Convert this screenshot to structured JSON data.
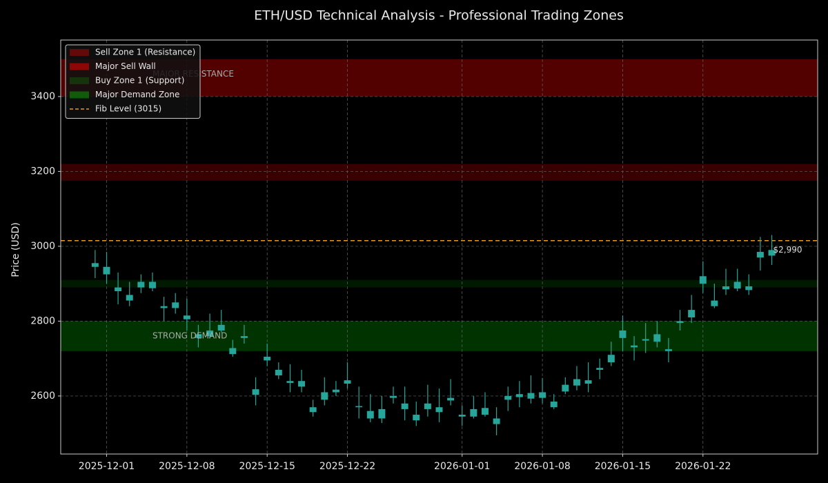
{
  "chart_data": {
    "type": "candlestick",
    "title": "ETH/USD Technical Analysis - Professional Trading Zones",
    "y_label": "Price (USD)",
    "x": [
      "2025-11-30",
      "2025-12-01",
      "2025-12-02",
      "2025-12-03",
      "2025-12-04",
      "2025-12-05",
      "2025-12-06",
      "2025-12-07",
      "2025-12-08",
      "2025-12-09",
      "2025-12-10",
      "2025-12-11",
      "2025-12-12",
      "2025-12-13",
      "2025-12-14",
      "2025-12-15",
      "2025-12-16",
      "2025-12-17",
      "2025-12-18",
      "2025-12-19",
      "2025-12-20",
      "2025-12-21",
      "2025-12-22",
      "2025-12-23",
      "2025-12-24",
      "2025-12-25",
      "2025-12-26",
      "2025-12-27",
      "2025-12-28",
      "2025-12-29",
      "2025-12-30",
      "2025-12-31",
      "2026-01-01",
      "2026-01-02",
      "2026-01-03",
      "2026-01-04",
      "2026-01-05",
      "2026-01-06",
      "2026-01-07",
      "2026-01-08",
      "2026-01-09",
      "2026-01-10",
      "2026-01-11",
      "2026-01-12",
      "2026-01-13",
      "2026-01-14",
      "2026-01-15",
      "2026-01-16",
      "2026-01-17",
      "2026-01-18",
      "2026-01-19",
      "2026-01-20",
      "2026-01-21",
      "2026-01-22",
      "2026-01-23",
      "2026-01-24",
      "2026-01-25",
      "2026-01-26",
      "2026-01-27",
      "2026-01-28"
    ],
    "open": [
      2945,
      2945,
      2890,
      2870,
      2890,
      2905,
      2835,
      2835,
      2815,
      2765,
      2760,
      2790,
      2728,
      2755,
      2618,
      2695,
      2670,
      2640,
      2640,
      2570,
      2590,
      2610,
      2642,
      2573,
      2560,
      2540,
      2595,
      2580,
      2550,
      2565,
      2570,
      2588,
      2550,
      2545,
      2568,
      2540,
      2590,
      2597,
      2608,
      2595,
      2585,
      2612,
      2628,
      2633,
      2670,
      2690,
      2755,
      2735,
      2748,
      2765,
      2725,
      2795,
      2810,
      2900,
      2855,
      2885,
      2905,
      2893,
      2970,
      2975
    ],
    "high": [
      2990,
      2985,
      2930,
      2905,
      2925,
      2930,
      2865,
      2875,
      2860,
      2790,
      2820,
      2830,
      2750,
      2790,
      2650,
      2740,
      2690,
      2685,
      2670,
      2590,
      2650,
      2640,
      2690,
      2625,
      2605,
      2600,
      2625,
      2625,
      2585,
      2630,
      2620,
      2645,
      2575,
      2600,
      2610,
      2570,
      2625,
      2640,
      2655,
      2648,
      2605,
      2650,
      2680,
      2690,
      2700,
      2745,
      2815,
      2760,
      2795,
      2800,
      2755,
      2830,
      2870,
      2960,
      2900,
      2940,
      2940,
      2925,
      3025,
      3030
    ],
    "low": [
      2915,
      2900,
      2845,
      2840,
      2875,
      2880,
      2800,
      2820,
      2775,
      2730,
      2755,
      2770,
      2705,
      2740,
      2575,
      2680,
      2645,
      2610,
      2610,
      2545,
      2575,
      2600,
      2620,
      2540,
      2530,
      2528,
      2580,
      2535,
      2520,
      2545,
      2530,
      2575,
      2520,
      2540,
      2545,
      2495,
      2560,
      2570,
      2580,
      2580,
      2565,
      2605,
      2615,
      2610,
      2645,
      2680,
      2720,
      2695,
      2715,
      2730,
      2690,
      2775,
      2795,
      2875,
      2835,
      2870,
      2880,
      2870,
      2935,
      2950
    ],
    "close": [
      2955,
      2925,
      2880,
      2855,
      2905,
      2888,
      2840,
      2850,
      2805,
      2755,
      2775,
      2775,
      2712,
      2760,
      2603,
      2705,
      2655,
      2635,
      2625,
      2557,
      2610,
      2617,
      2633,
      2570,
      2540,
      2565,
      2600,
      2565,
      2535,
      2580,
      2557,
      2595,
      2545,
      2565,
      2550,
      2525,
      2600,
      2605,
      2593,
      2610,
      2570,
      2630,
      2645,
      2642,
      2675,
      2710,
      2775,
      2730,
      2752,
      2745,
      2720,
      2800,
      2830,
      2920,
      2840,
      2893,
      2887,
      2883,
      2985,
      2990
    ],
    "color": "#26a69a",
    "xlim": [
      "2025-11-27",
      "2026-02-01"
    ],
    "xticks": [
      "2025-12-01",
      "2025-12-08",
      "2025-12-15",
      "2025-12-22",
      "2026-01-01",
      "2026-01-08",
      "2026-01-15",
      "2026-01-22"
    ],
    "ylim": [
      2445,
      3551
    ],
    "yticks": [
      2600,
      2800,
      3000,
      3200,
      3400
    ],
    "grid": true,
    "legend": "upper left",
    "zones": [
      {
        "name": "Sell Zone 1 (Resistance)",
        "range": [
          3175,
          3220
        ],
        "color": "#ff0000",
        "opacity": 0.22
      },
      {
        "name": "Major Sell Wall",
        "range": [
          3400,
          3500
        ],
        "color": "#ff0000",
        "opacity": 0.32
      },
      {
        "name": "Buy Zone 1 (Support)",
        "range": [
          2890,
          2910
        ],
        "color": "#00ff00",
        "opacity": 0.1
      },
      {
        "name": "Major Demand Zone",
        "range": [
          2720,
          2800
        ],
        "color": "#00ff00",
        "opacity": 0.2
      }
    ],
    "lines": [
      {
        "name": "Fib Level (3015)",
        "value": 3015,
        "color": "#e69a28"
      }
    ],
    "annotations": [
      {
        "text": "MAJOR RESISTANCE",
        "x": "2025-12-05",
        "y": 3460
      },
      {
        "text": "STRONG DEMAND",
        "x": "2025-12-05",
        "y": 2760
      },
      {
        "text": "$2,990",
        "x": "2026-01-28",
        "y": 2990
      }
    ]
  }
}
